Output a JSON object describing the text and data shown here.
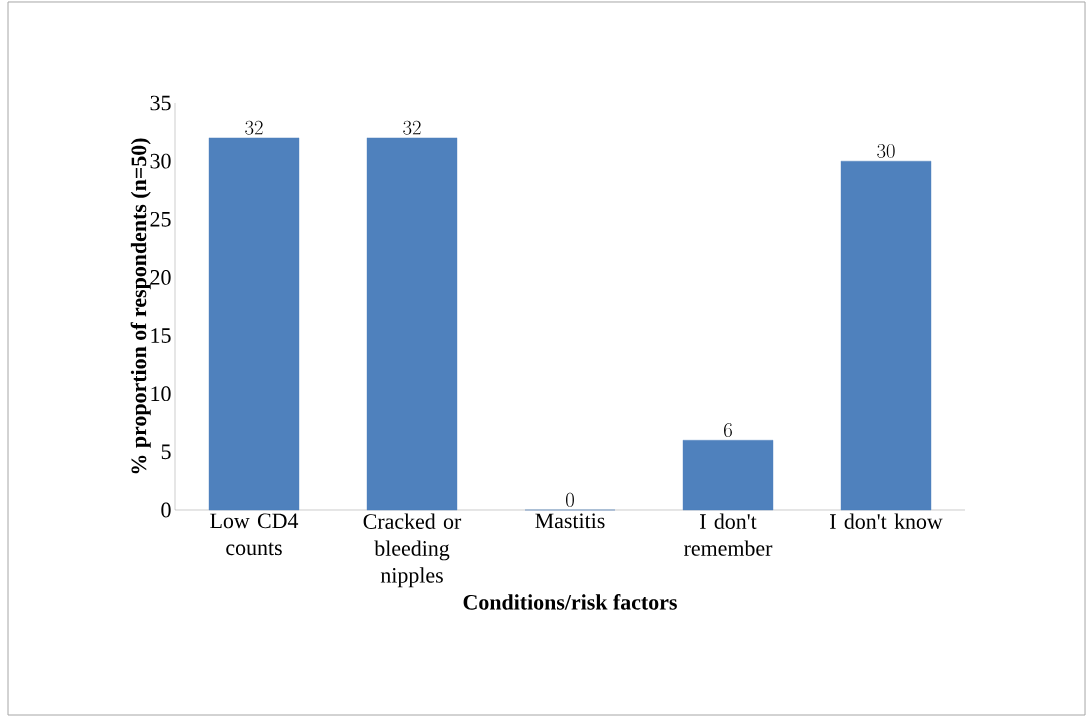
{
  "chart_data": {
    "type": "bar",
    "xlabel": "Conditions/risk factors",
    "ylabel": "% proportion of respondents (n=50)",
    "categories": [
      "Low CD4 counts",
      "Cracked or bleeding nipples",
      "Mastitis",
      "I don't remember",
      "I don't know"
    ],
    "values": [
      32,
      32,
      0,
      6,
      30
    ],
    "color": "#4f81bd",
    "ylim": [
      0,
      35
    ],
    "yticks": [
      0,
      5,
      10,
      15,
      20,
      25,
      30,
      35
    ],
    "data_labels": true
  }
}
